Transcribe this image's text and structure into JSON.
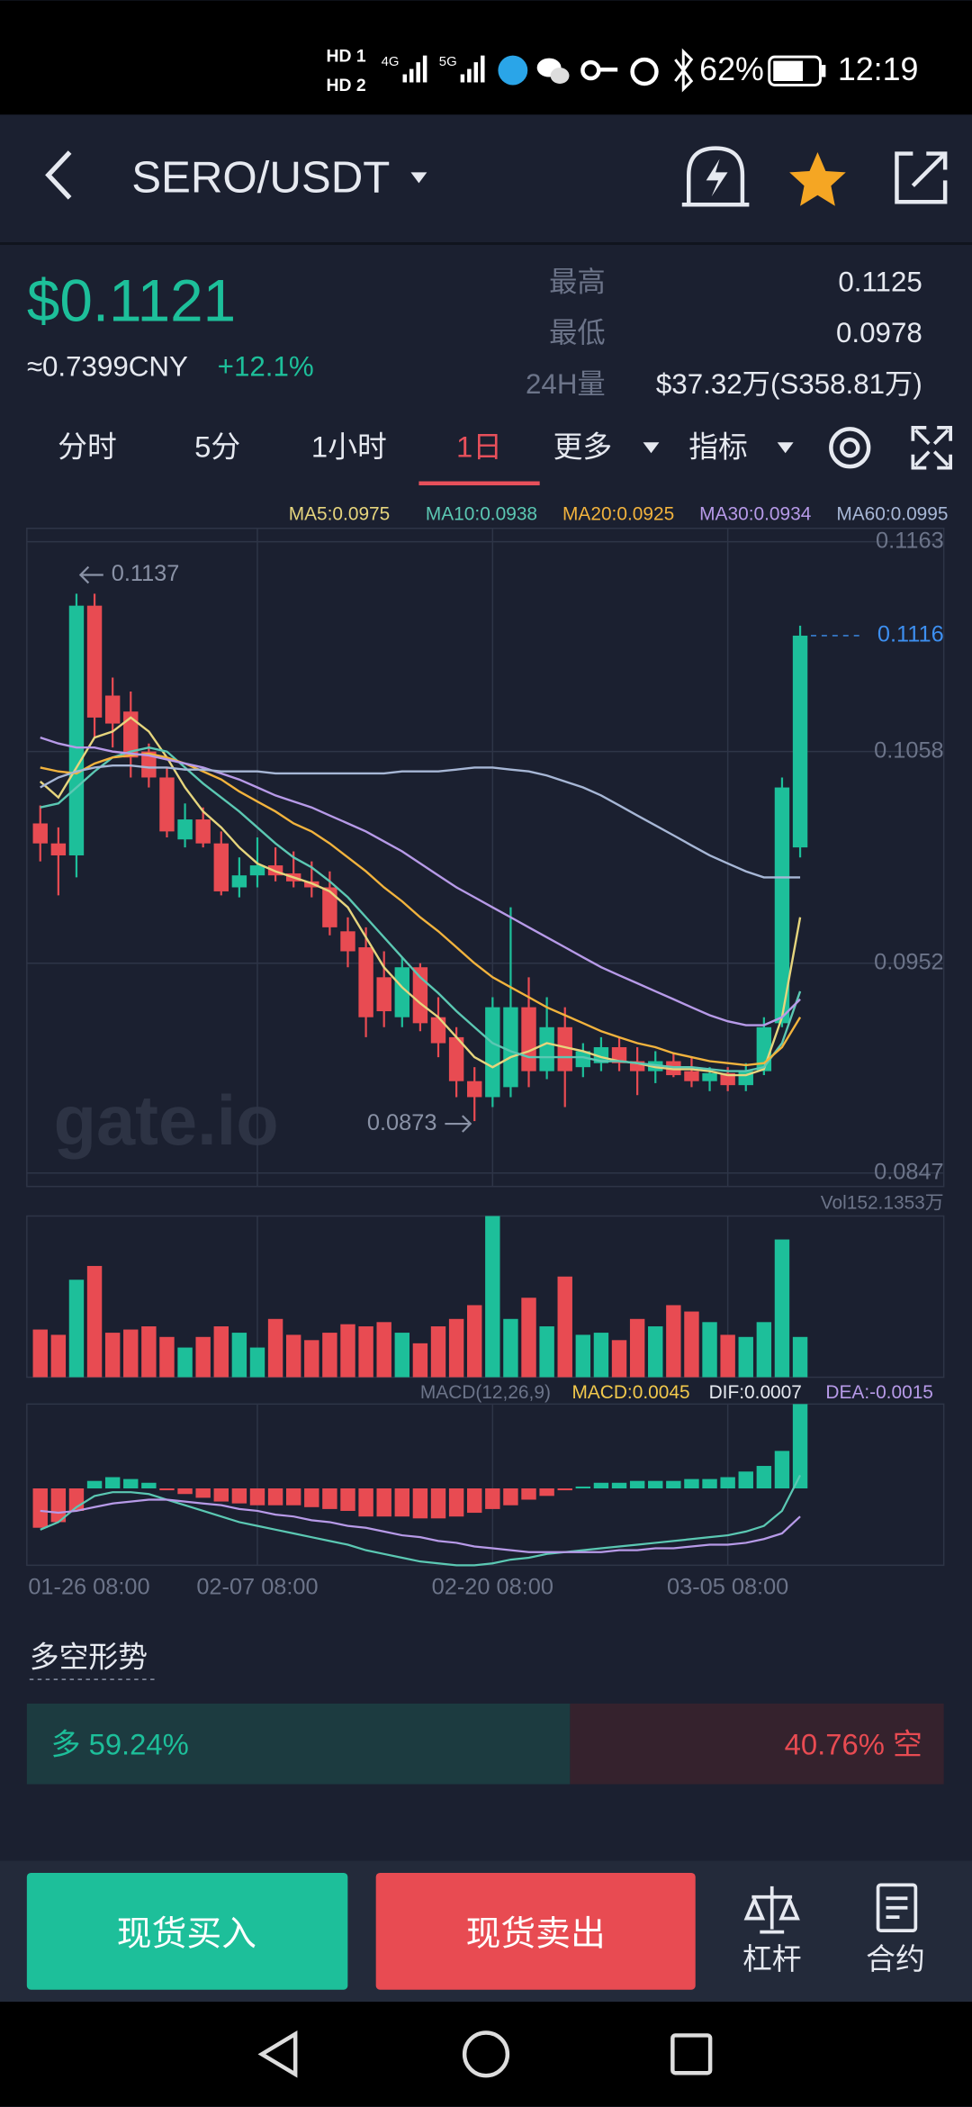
{
  "status_bar": {
    "hd": [
      "HD 1",
      "HD 2"
    ],
    "network": [
      "4G",
      "5G"
    ],
    "battery": "62%",
    "time": "12:19"
  },
  "header": {
    "pair": "SERO/USDT"
  },
  "ticker": {
    "price": "$0.1121",
    "cny": "≈0.7399CNY",
    "change": "+12.1%",
    "stats": [
      {
        "label": "最高",
        "value": "0.1125"
      },
      {
        "label": "最低",
        "value": "0.0978"
      },
      {
        "label": "24H量",
        "value": "$37.32万(S358.81万)"
      }
    ]
  },
  "tabs": [
    "分时",
    "5分",
    "1小时",
    "1日",
    "更多",
    "指标"
  ],
  "chart_data": {
    "type": "candlestick",
    "categories": [
      "01-26 08:00",
      null,
      null,
      null,
      null,
      null,
      null,
      null,
      null,
      null,
      null,
      null,
      "02-07 08:00",
      null,
      null,
      null,
      null,
      null,
      null,
      null,
      null,
      null,
      null,
      null,
      null,
      "02-20 08:00",
      null,
      null,
      null,
      null,
      null,
      null,
      null,
      null,
      null,
      null,
      null,
      null,
      "03-05 08:00",
      null,
      null,
      null,
      null
    ],
    "open": [
      0.1022,
      0.1012,
      0.1006,
      0.1131,
      0.1086,
      0.1078,
      0.1058,
      0.1045,
      0.1014,
      0.1024,
      0.1012,
      0.099,
      0.0996,
      0.1001,
      0.0997,
      0.0993,
      0.099,
      0.0968,
      0.096,
      0.0945,
      0.0925,
      0.095,
      0.0925,
      0.0915,
      0.0893,
      0.0885,
      0.089,
      0.093,
      0.0898,
      0.092,
      0.09,
      0.0902,
      0.091,
      0.0903,
      0.0898,
      0.0903,
      0.0898,
      0.0893,
      0.0897,
      0.0891,
      0.0898,
      0.0922,
      0.101
    ],
    "high": [
      0.1031,
      0.102,
      0.1137,
      0.1137,
      0.1095,
      0.1088,
      0.1062,
      0.105,
      0.1032,
      0.103,
      0.1018,
      0.1005,
      0.1015,
      0.101,
      0.1008,
      0.1003,
      0.0998,
      0.0975,
      0.097,
      0.0958,
      0.0955,
      0.0952,
      0.0935,
      0.092,
      0.09,
      0.0935,
      0.098,
      0.0945,
      0.0935,
      0.093,
      0.0912,
      0.0915,
      0.0915,
      0.091,
      0.0908,
      0.0907,
      0.0905,
      0.09,
      0.09,
      0.0902,
      0.0925,
      0.1045,
      0.1121
    ],
    "low": [
      0.1003,
      0.0986,
      0.0995,
      0.1065,
      0.106,
      0.1045,
      0.104,
      0.1015,
      0.101,
      0.101,
      0.0986,
      0.0985,
      0.099,
      0.0993,
      0.099,
      0.0985,
      0.0966,
      0.095,
      0.0915,
      0.092,
      0.092,
      0.0918,
      0.0905,
      0.0885,
      0.0873,
      0.088,
      0.0885,
      0.089,
      0.0894,
      0.088,
      0.0895,
      0.0898,
      0.0898,
      0.0886,
      0.0892,
      0.0895,
      0.089,
      0.0888,
      0.0888,
      0.0888,
      0.0896,
      0.092,
      0.1005
    ],
    "close": [
      0.1012,
      0.1006,
      0.1131,
      0.1075,
      0.1072,
      0.1055,
      0.1045,
      0.1018,
      0.1024,
      0.1012,
      0.0988,
      0.0996,
      0.1001,
      0.0996,
      0.0993,
      0.099,
      0.097,
      0.0958,
      0.0925,
      0.0928,
      0.095,
      0.0922,
      0.0912,
      0.0893,
      0.0885,
      0.093,
      0.093,
      0.0898,
      0.092,
      0.0898,
      0.0908,
      0.091,
      0.0902,
      0.0898,
      0.0903,
      0.0896,
      0.0893,
      0.0897,
      0.0891,
      0.0898,
      0.092,
      0.104,
      0.1116
    ],
    "up_color": "#1dbf9a",
    "down_color": "#e84b52",
    "ylim": [
      0.0847,
      0.1163
    ],
    "yticks": [
      0.1163,
      0.1058,
      0.0952,
      0.0847
    ],
    "grid": true,
    "last_price": 0.1116,
    "max_marker": 0.1137,
    "min_marker": 0.0873,
    "watermark": "gate.io",
    "ma": [
      {
        "name": "MA5:0.0975",
        "color": "#e6d57d",
        "values": [
          0.1043,
          0.1035,
          0.105,
          0.1065,
          0.1068,
          0.1075,
          0.1068,
          0.1055,
          0.104,
          0.1028,
          0.102,
          0.101,
          0.1002,
          0.0998,
          0.0995,
          0.0992,
          0.0988,
          0.098,
          0.0965,
          0.095,
          0.094,
          0.0932,
          0.0925,
          0.0915,
          0.0905,
          0.09,
          0.0905,
          0.0908,
          0.0912,
          0.091,
          0.0908,
          0.0905,
          0.0903,
          0.0902,
          0.09,
          0.0899,
          0.0899,
          0.0898,
          0.0896,
          0.0896,
          0.0899,
          0.0925,
          0.0975
        ]
      },
      {
        "name": "MA10:0.0938",
        "color": "#5bc8b3",
        "values": [
          0.103,
          0.1032,
          0.104,
          0.1048,
          0.1055,
          0.1058,
          0.106,
          0.1058,
          0.105,
          0.1042,
          0.1035,
          0.1028,
          0.102,
          0.1012,
          0.1005,
          0.1,
          0.0993,
          0.0985,
          0.0975,
          0.0965,
          0.0955,
          0.0945,
          0.0937,
          0.0928,
          0.092,
          0.0912,
          0.0908,
          0.0905,
          0.0905,
          0.0905,
          0.0905,
          0.0903,
          0.0903,
          0.0902,
          0.0901,
          0.09,
          0.09,
          0.0899,
          0.0898,
          0.0898,
          0.09,
          0.0912,
          0.0938
        ]
      },
      {
        "name": "MA20:0.0925",
        "color": "#f2b33d",
        "values": [
          0.105,
          0.1048,
          0.1047,
          0.1052,
          0.1055,
          0.1056,
          0.1057,
          0.1055,
          0.1052,
          0.1048,
          0.1044,
          0.1038,
          0.1033,
          0.1028,
          0.1022,
          0.1018,
          0.1012,
          0.1005,
          0.0998,
          0.099,
          0.0983,
          0.0975,
          0.0968,
          0.096,
          0.0952,
          0.0945,
          0.094,
          0.0935,
          0.093,
          0.0926,
          0.0922,
          0.0918,
          0.0915,
          0.0912,
          0.091,
          0.0907,
          0.0905,
          0.0903,
          0.0902,
          0.0901,
          0.0902,
          0.091,
          0.0925
        ]
      },
      {
        "name": "MA30:0.0934",
        "color": "#b79ae8",
        "values": [
          0.1065,
          0.1062,
          0.106,
          0.106,
          0.1058,
          0.1057,
          0.1056,
          0.1054,
          0.1052,
          0.105,
          0.1047,
          0.1044,
          0.104,
          0.1036,
          0.1033,
          0.103,
          0.1026,
          0.1022,
          0.1018,
          0.1013,
          0.1008,
          0.1002,
          0.0996,
          0.099,
          0.0985,
          0.098,
          0.0975,
          0.097,
          0.0965,
          0.096,
          0.0955,
          0.095,
          0.0946,
          0.0942,
          0.0938,
          0.0934,
          0.093,
          0.0926,
          0.0923,
          0.0921,
          0.0921,
          0.0925,
          0.0934
        ]
      },
      {
        "name": "MA60:0.0995",
        "color": "#a7b7d6",
        "values": [
          0.104,
          0.1045,
          0.1048,
          0.105,
          0.1051,
          0.1051,
          0.105,
          0.105,
          0.1049,
          0.1049,
          0.1048,
          0.1048,
          0.1048,
          0.1047,
          0.1047,
          0.1047,
          0.1047,
          0.1047,
          0.1047,
          0.1047,
          0.1048,
          0.1048,
          0.1048,
          0.1049,
          0.105,
          0.105,
          0.1049,
          0.1048,
          0.1046,
          0.1043,
          0.104,
          0.1036,
          0.1031,
          0.1026,
          0.1021,
          0.1016,
          0.1011,
          0.1006,
          0.1002,
          0.0998,
          0.0995,
          0.0995,
          0.0995
        ]
      }
    ],
    "volume": {
      "label": "Vol152.1353万",
      "ylim": [
        0,
        152.1353
      ],
      "values": [
        45,
        40,
        92,
        105,
        42,
        45,
        48,
        38,
        28,
        38,
        48,
        42,
        28,
        55,
        40,
        35,
        42,
        50,
        48,
        52,
        42,
        32,
        48,
        55,
        68,
        152.1353,
        55,
        75,
        48,
        95,
        40,
        42,
        35,
        55,
        48,
        68,
        62,
        52,
        40,
        38,
        52,
        130,
        38
      ]
    },
    "macd": {
      "label": "MACD(12,26,9)",
      "macd_label": "MACD:0.0045",
      "dif_label": "DIF:0.0007",
      "dea_label": "DEA:-0.0015",
      "ylim": [
        -0.0041,
        0.0045
      ],
      "histogram": [
        -0.0021,
        -0.0018,
        -0.0012,
        0.0004,
        0.0006,
        0.0005,
        0.0003,
        -0.0001,
        -0.0003,
        -0.0005,
        -0.0007,
        -0.0008,
        -0.0009,
        -0.0009,
        -0.0009,
        -0.001,
        -0.0011,
        -0.0012,
        -0.0015,
        -0.0015,
        -0.0015,
        -0.0016,
        -0.0016,
        -0.0015,
        -0.0013,
        -0.0011,
        -0.0009,
        -0.0006,
        -0.0004,
        -0.0001,
        0.0001,
        0.0003,
        0.0003,
        0.0004,
        0.0004,
        0.0004,
        0.0005,
        0.0005,
        0.0006,
        0.0009,
        0.0012,
        0.002,
        0.0045
      ],
      "dif": [
        -0.0022,
        -0.0018,
        -0.001,
        -0.0004,
        -0.0002,
        -0.0002,
        -0.0003,
        -0.0006,
        -0.0009,
        -0.0012,
        -0.0015,
        -0.0018,
        -0.002,
        -0.0022,
        -0.0024,
        -0.0026,
        -0.0028,
        -0.003,
        -0.0033,
        -0.0035,
        -0.0037,
        -0.0039,
        -0.004,
        -0.0041,
        -0.0041,
        -0.004,
        -0.0038,
        -0.0037,
        -0.0035,
        -0.0034,
        -0.0033,
        -0.0032,
        -0.0031,
        -0.003,
        -0.0029,
        -0.0028,
        -0.0027,
        -0.0026,
        -0.0025,
        -0.0023,
        -0.002,
        -0.0012,
        0.0007
      ],
      "dea": [
        -0.0012,
        -0.0013,
        -0.0012,
        -0.001,
        -0.0008,
        -0.0007,
        -0.0006,
        -0.0006,
        -0.0007,
        -0.0008,
        -0.0009,
        -0.0011,
        -0.0012,
        -0.0014,
        -0.0015,
        -0.0017,
        -0.0018,
        -0.002,
        -0.0021,
        -0.0023,
        -0.0025,
        -0.0026,
        -0.0028,
        -0.0029,
        -0.0031,
        -0.0032,
        -0.0033,
        -0.0034,
        -0.0034,
        -0.0034,
        -0.0034,
        -0.0034,
        -0.0033,
        -0.0033,
        -0.0032,
        -0.0032,
        -0.0031,
        -0.003,
        -0.003,
        -0.0029,
        -0.0027,
        -0.0024,
        -0.0015
      ],
      "dif_color": "#5bc8b3",
      "dea_color": "#b79ae8"
    }
  },
  "sentiment": {
    "title": "多空形势",
    "long": {
      "value": 59.24,
      "label": "多 59.24%"
    },
    "short": {
      "value": 40.76,
      "label": "40.76% 空"
    }
  },
  "actions": {
    "buy": "现货买入",
    "sell": "现货卖出",
    "tools": [
      "杠杆",
      "合约"
    ]
  }
}
